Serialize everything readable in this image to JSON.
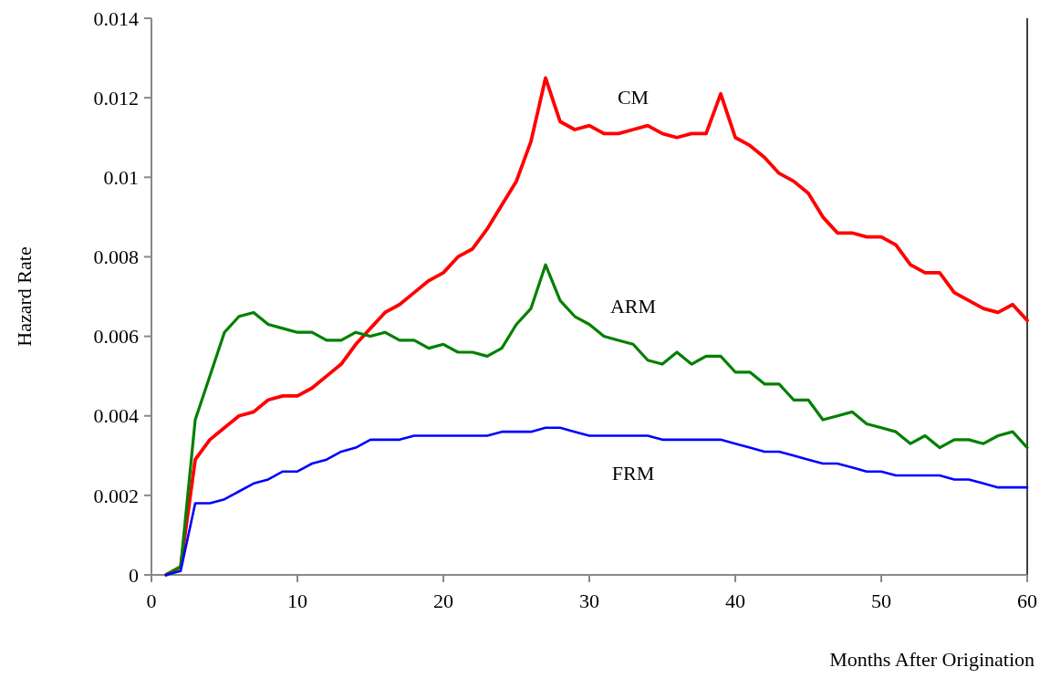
{
  "chart_data": {
    "type": "line",
    "xlabel": "Months After Origination",
    "ylabel": "Hazard Rate",
    "x": [
      1,
      2,
      3,
      4,
      5,
      6,
      7,
      8,
      9,
      10,
      11,
      12,
      13,
      14,
      15,
      16,
      17,
      18,
      19,
      20,
      21,
      22,
      23,
      24,
      25,
      26,
      27,
      28,
      29,
      30,
      31,
      32,
      33,
      34,
      35,
      36,
      37,
      38,
      39,
      40,
      41,
      42,
      43,
      44,
      45,
      46,
      47,
      48,
      49,
      50,
      51,
      52,
      53,
      54,
      55,
      56,
      57,
      58,
      59,
      60
    ],
    "xlim": [
      0,
      60
    ],
    "xticks": [
      0,
      10,
      20,
      30,
      40,
      50,
      60
    ],
    "ylim": [
      0,
      0.014
    ],
    "yticks": [
      0,
      0.002,
      0.004,
      0.006,
      0.008,
      0.01,
      0.012,
      0.014
    ],
    "grid": false,
    "legend": false,
    "marker": "none",
    "line_style": "solid",
    "series": [
      {
        "name": "CM",
        "color": "#ff0000",
        "values": [
          0,
          0.0002,
          0.0029,
          0.0034,
          0.0037,
          0.004,
          0.0041,
          0.0044,
          0.0045,
          0.0045,
          0.0047,
          0.005,
          0.0053,
          0.0058,
          0.0062,
          0.0066,
          0.0068,
          0.0071,
          0.0074,
          0.0076,
          0.008,
          0.0082,
          0.0087,
          0.0093,
          0.0099,
          0.0109,
          0.0125,
          0.0114,
          0.0112,
          0.0113,
          0.0111,
          0.0111,
          0.0112,
          0.0113,
          0.0111,
          0.011,
          0.0111,
          0.0111,
          0.0121,
          0.011,
          0.0108,
          0.0105,
          0.0101,
          0.0099,
          0.0096,
          0.009,
          0.0086,
          0.0086,
          0.0085,
          0.0085,
          0.0083,
          0.0078,
          0.0076,
          0.0076,
          0.0071,
          0.0069,
          0.0067,
          0.0066,
          0.0068,
          0.0064
        ]
      },
      {
        "name": "ARM",
        "color": "#008000",
        "values": [
          0,
          0.0002,
          0.0039,
          0.005,
          0.0061,
          0.0065,
          0.0066,
          0.0063,
          0.0062,
          0.0061,
          0.0061,
          0.0059,
          0.0059,
          0.0061,
          0.006,
          0.0061,
          0.0059,
          0.0059,
          0.0057,
          0.0058,
          0.0056,
          0.0056,
          0.0055,
          0.0057,
          0.0063,
          0.0067,
          0.0078,
          0.0069,
          0.0065,
          0.0063,
          0.006,
          0.0059,
          0.0058,
          0.0054,
          0.0053,
          0.0056,
          0.0053,
          0.0055,
          0.0055,
          0.0051,
          0.0051,
          0.0048,
          0.0048,
          0.0044,
          0.0044,
          0.0039,
          0.004,
          0.0041,
          0.0038,
          0.0037,
          0.0036,
          0.0033,
          0.0035,
          0.0032,
          0.0034,
          0.0034,
          0.0033,
          0.0035,
          0.0036,
          0.0032
        ]
      },
      {
        "name": "FRM",
        "color": "#0000ff",
        "values": [
          0,
          0.0001,
          0.0018,
          0.0018,
          0.0019,
          0.0021,
          0.0023,
          0.0024,
          0.0026,
          0.0026,
          0.0028,
          0.0029,
          0.0031,
          0.0032,
          0.0034,
          0.0034,
          0.0034,
          0.0035,
          0.0035,
          0.0035,
          0.0035,
          0.0035,
          0.0035,
          0.0036,
          0.0036,
          0.0036,
          0.0037,
          0.0037,
          0.0036,
          0.0035,
          0.0035,
          0.0035,
          0.0035,
          0.0035,
          0.0034,
          0.0034,
          0.0034,
          0.0034,
          0.0034,
          0.0033,
          0.0032,
          0.0031,
          0.0031,
          0.003,
          0.0029,
          0.0028,
          0.0028,
          0.0027,
          0.0026,
          0.0026,
          0.0025,
          0.0025,
          0.0025,
          0.0025,
          0.0024,
          0.0024,
          0.0023,
          0.0022,
          0.0022,
          0.0022
        ]
      }
    ]
  }
}
